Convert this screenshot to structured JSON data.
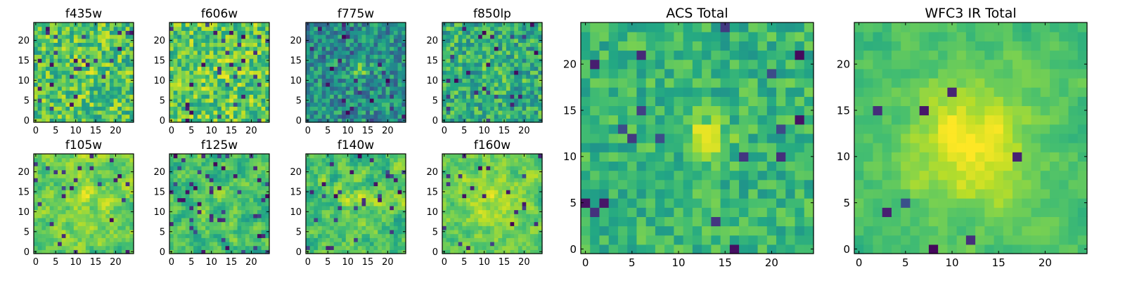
{
  "chart_data": [
    {
      "type": "heatmap",
      "title": "f435w",
      "grid_size": [
        25,
        25
      ],
      "xticks": [
        0,
        5,
        10,
        15,
        20
      ],
      "yticks": [
        0,
        5,
        10,
        15,
        20
      ],
      "xlim": [
        -0.5,
        24.5
      ],
      "ylim": [
        -0.5,
        24.5
      ],
      "colormap": "viridis",
      "texture": "fine noise, mostly green-yellow with scattered dark pixels"
    },
    {
      "type": "heatmap",
      "title": "f606w",
      "grid_size": [
        25,
        25
      ],
      "xticks": [
        0,
        5,
        10,
        15,
        20
      ],
      "yticks": [
        0,
        5,
        10,
        15,
        20
      ],
      "xlim": [
        -0.5,
        24.5
      ],
      "ylim": [
        -0.5,
        24.5
      ],
      "colormap": "viridis",
      "texture": "fine noise, yellow-green with scattered dark pixels"
    },
    {
      "type": "heatmap",
      "title": "f775w",
      "grid_size": [
        25,
        25
      ],
      "xticks": [
        0,
        5,
        10,
        15,
        20
      ],
      "yticks": [
        0,
        5,
        10,
        15,
        20
      ],
      "xlim": [
        -0.5,
        24.5
      ],
      "ylim": [
        -0.5,
        24.5
      ],
      "colormap": "viridis",
      "texture": "noise, teal-blue dominated with faint bright center near (13,13)"
    },
    {
      "type": "heatmap",
      "title": "f850lp",
      "grid_size": [
        25,
        25
      ],
      "xticks": [
        0,
        5,
        10,
        15,
        20
      ],
      "yticks": [
        0,
        5,
        10,
        15,
        20
      ],
      "xlim": [
        -0.5,
        24.5
      ],
      "ylim": [
        -0.5,
        24.5
      ],
      "colormap": "viridis",
      "texture": "noise, green with bright specks"
    },
    {
      "type": "heatmap",
      "title": "f105w",
      "grid_size": [
        25,
        25
      ],
      "xticks": [
        0,
        5,
        10,
        15,
        20
      ],
      "yticks": [
        0,
        5,
        10,
        15,
        20
      ],
      "xlim": [
        -0.5,
        24.5
      ],
      "ylim": [
        -0.5,
        24.5
      ],
      "colormap": "viridis",
      "texture": "smoother noise, yellow-green with diffuse central glow"
    },
    {
      "type": "heatmap",
      "title": "f125w",
      "grid_size": [
        25,
        25
      ],
      "xticks": [
        0,
        5,
        10,
        15,
        20
      ],
      "yticks": [
        0,
        5,
        10,
        15,
        20
      ],
      "xlim": [
        -0.5,
        24.5
      ],
      "ylim": [
        -0.5,
        24.5
      ],
      "colormap": "viridis",
      "texture": "smoother noise, green with dark patches"
    },
    {
      "type": "heatmap",
      "title": "f140w",
      "grid_size": [
        25,
        25
      ],
      "xticks": [
        0,
        5,
        10,
        15,
        20
      ],
      "yticks": [
        0,
        5,
        10,
        15,
        20
      ],
      "xlim": [
        -0.5,
        24.5
      ],
      "ylim": [
        -0.5,
        24.5
      ],
      "colormap": "viridis",
      "texture": "smoother noise, green-yellow with central glow"
    },
    {
      "type": "heatmap",
      "title": "f160w",
      "grid_size": [
        25,
        25
      ],
      "xticks": [
        0,
        5,
        10,
        15,
        20
      ],
      "yticks": [
        0,
        5,
        10,
        15,
        20
      ],
      "xlim": [
        -0.5,
        24.5
      ],
      "ylim": [
        -0.5,
        24.5
      ],
      "colormap": "viridis",
      "texture": "smoother noise, yellow-green with broad central glow"
    },
    {
      "type": "heatmap",
      "title": "ACS Total",
      "grid_size": [
        25,
        25
      ],
      "xticks": [
        0,
        5,
        10,
        15,
        20
      ],
      "yticks": [
        0,
        5,
        10,
        15,
        20
      ],
      "xlim": [
        -0.5,
        24.5
      ],
      "ylim": [
        -0.5,
        24.5
      ],
      "colormap": "viridis",
      "texture": "noisy green field with bright compact source near (13,12) and a few dark pixels"
    },
    {
      "type": "heatmap",
      "title": "WFC3 IR Total",
      "grid_size": [
        25,
        25
      ],
      "xticks": [
        0,
        5,
        10,
        15,
        20
      ],
      "yticks": [
        0,
        5,
        10,
        15,
        20
      ],
      "xlim": [
        -0.5,
        24.5
      ],
      "ylim": [
        -0.5,
        24.5
      ],
      "colormap": "viridis",
      "texture": "smooth green field with broad bright source centered near (12,11) and dark pixels at top"
    }
  ]
}
